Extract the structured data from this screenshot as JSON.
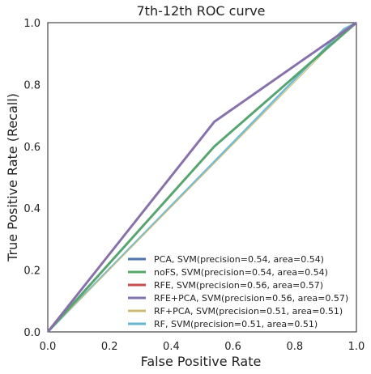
{
  "chart_data": {
    "type": "line",
    "title": "7th-12th ROC curve",
    "xlabel": "False Positive Rate",
    "ylabel": "True Positive Rate (Recall)",
    "xlim": [
      0.0,
      1.0
    ],
    "ylim": [
      0.0,
      1.0
    ],
    "xticks": [
      0.0,
      0.2,
      0.4,
      0.6,
      0.8,
      1.0
    ],
    "yticks": [
      0.0,
      0.2,
      0.4,
      0.6,
      0.8,
      1.0
    ],
    "xtick_labels": [
      "0.0",
      "0.2",
      "0.4",
      "0.6",
      "0.8",
      "1.0"
    ],
    "ytick_labels": [
      "0.0",
      "0.2",
      "0.4",
      "0.6",
      "0.8",
      "1.0"
    ],
    "grid": false,
    "legend_position": "lower-right",
    "series": [
      {
        "name": "PCA, SVM(precision=0.54, area=0.54)",
        "color": "#4c72b0",
        "x": [
          0.0,
          0.54,
          1.0
        ],
        "y": [
          0.0,
          0.6,
          1.0
        ]
      },
      {
        "name": "noFS, SVM(precision=0.54, area=0.54)",
        "color": "#55a868",
        "x": [
          0.0,
          0.54,
          1.0
        ],
        "y": [
          0.0,
          0.6,
          1.0
        ]
      },
      {
        "name": "RFE, SVM(precision=0.56, area=0.57)",
        "color": "#c44e52",
        "x": [
          0.0,
          0.54,
          1.0
        ],
        "y": [
          0.0,
          0.68,
          1.0
        ]
      },
      {
        "name": "RFE+PCA, SVM(precision=0.56, area=0.57)",
        "color": "#8172b2",
        "x": [
          0.0,
          0.54,
          1.0
        ],
        "y": [
          0.0,
          0.68,
          1.0
        ]
      },
      {
        "name": "RF+PCA, SVM(precision=0.51, area=0.51)",
        "color": "#ccb974",
        "x": [
          0.0,
          0.96,
          1.0
        ],
        "y": [
          0.0,
          0.97,
          1.0
        ]
      },
      {
        "name": "RF, SVM(precision=0.51, area=0.51)",
        "color": "#64b5cd",
        "x": [
          0.0,
          0.96,
          1.0
        ],
        "y": [
          0.0,
          0.98,
          1.0
        ]
      }
    ]
  }
}
